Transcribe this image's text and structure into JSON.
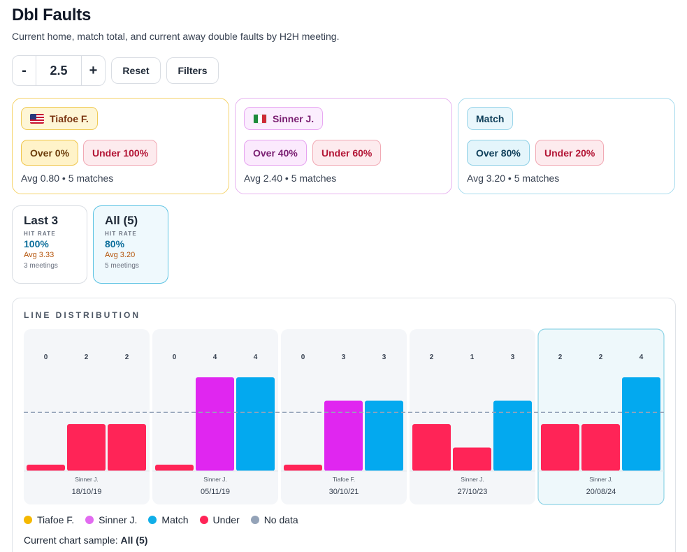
{
  "header": {
    "title": "Dbl Faults",
    "subtitle": "Current home, match total, and current away double faults by H2H meeting."
  },
  "controls": {
    "minus_label": "-",
    "line_value": "2.5",
    "plus_label": "+",
    "reset_label": "Reset",
    "filters_label": "Filters"
  },
  "player_cards": {
    "home": {
      "name": "Tiafoe F.",
      "flag": "us-flag-icon",
      "over": "Over 0%",
      "under": "Under 100%",
      "avg": "Avg 0.80 • 5 matches"
    },
    "away": {
      "name": "Sinner J.",
      "flag": "it-flag-icon",
      "over": "Over 40%",
      "under": "Under 60%",
      "avg": "Avg 2.40 • 5 matches"
    },
    "match": {
      "name": "Match",
      "over": "Over 80%",
      "under": "Under 20%",
      "avg": "Avg 3.20 • 5 matches"
    }
  },
  "samples": {
    "last3": {
      "title": "Last 3",
      "label": "HIT RATE",
      "rate": "100%",
      "avg": "Avg 3.33",
      "meetings": "3 meetings"
    },
    "all5": {
      "title": "All (5)",
      "label": "HIT RATE",
      "rate": "80%",
      "avg": "Avg 3.20",
      "meetings": "5 meetings"
    }
  },
  "distribution": {
    "title": "LINE DISTRIBUTION",
    "legend": [
      {
        "label": "Tiafoe F.",
        "color": "#f5b800"
      },
      {
        "label": "Sinner J.",
        "color": "#e26bf0"
      },
      {
        "label": "Match",
        "color": "#10aee8"
      },
      {
        "label": "Under",
        "color": "#ff2457"
      },
      {
        "label": "No data",
        "color": "#94a3b8"
      }
    ],
    "sample_prefix": "Current chart sample:",
    "sample_value": "All (5)"
  },
  "chart_data": {
    "type": "bar",
    "title": "LINE DISTRIBUTION",
    "line": 2.5,
    "ylim": [
      0,
      4
    ],
    "groups": [
      {
        "date": "18/10/19",
        "winner": "Sinner J.",
        "home": 0,
        "away": 2,
        "match": 2
      },
      {
        "date": "05/11/19",
        "winner": "Sinner J.",
        "home": 0,
        "away": 4,
        "match": 4
      },
      {
        "date": "30/10/21",
        "winner": "Tiafoe F.",
        "home": 0,
        "away": 3,
        "match": 3
      },
      {
        "date": "27/10/23",
        "winner": "Sinner J.",
        "home": 2,
        "away": 1,
        "match": 3
      },
      {
        "date": "20/08/24",
        "winner": "Sinner J.",
        "home": 2,
        "away": 2,
        "match": 4
      }
    ],
    "colors": {
      "home_over": "#f5b800",
      "away_over": "#e026f0",
      "match_over": "#03a9ef",
      "under": "#ff2457"
    }
  }
}
